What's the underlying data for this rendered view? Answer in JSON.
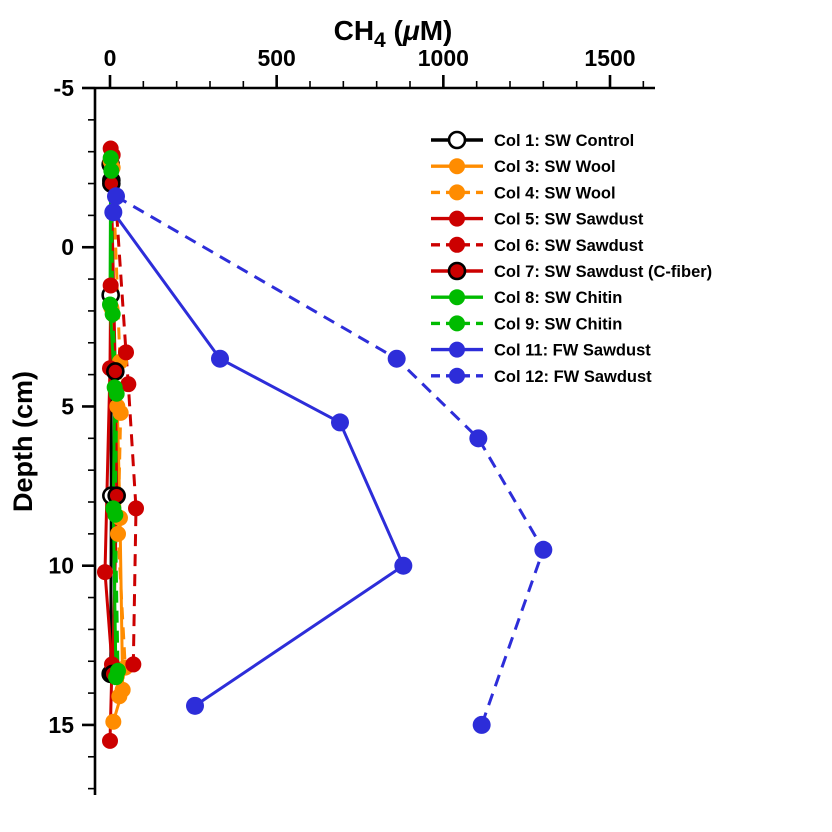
{
  "chart_data": {
    "type": "line",
    "title_parts": {
      "element": "CH",
      "subscript": "4",
      "unit_open": " (",
      "mu": "μ",
      "unit_close": "M)"
    },
    "xlabel": "CH4 (μM)",
    "ylabel": "Depth (cm)",
    "x_axis": {
      "position": "top",
      "range": [
        -45,
        1635
      ],
      "ticks": [
        0,
        500,
        1000,
        1500
      ],
      "tick_labels": [
        "0",
        "500",
        "1000",
        "1500"
      ],
      "minor_step": 100
    },
    "y_axis": {
      "position": "left",
      "range": [
        -5,
        17.2
      ],
      "ticks": [
        -5,
        0,
        5,
        10,
        15
      ],
      "tick_labels": [
        "-5",
        "0",
        "5",
        "10",
        "15"
      ],
      "minor_step": 1,
      "direction": "depth increases downward"
    },
    "legend_position": "upper-right-inside",
    "axis_color": "#000000",
    "series": [
      {
        "id": "col1",
        "label": "Col 1: SW Control",
        "color": "#000000",
        "line_style": "solid",
        "marker": "open-circle",
        "points": [
          [
            2,
            -2.6
          ],
          [
            4,
            -2.1
          ],
          [
            2,
            1.5
          ],
          [
            4,
            7.8
          ],
          [
            2,
            13.4
          ]
        ]
      },
      {
        "id": "col3",
        "label": "Col 3: SW Wool",
        "color": "#ff8c00",
        "line_style": "solid",
        "marker": "filled-circle",
        "points": [
          [
            2,
            -2.7
          ],
          [
            4,
            1.9
          ],
          [
            22,
            5.0
          ],
          [
            30,
            8.5
          ],
          [
            38,
            13.9
          ],
          [
            10,
            14.9
          ]
        ]
      },
      {
        "id": "col4",
        "label": "Col 4: SW Wool",
        "color": "#ff8c00",
        "line_style": "dashed",
        "marker": "filled-circle",
        "points": [
          [
            8,
            -2.5
          ],
          [
            30,
            3.6
          ],
          [
            32,
            5.2
          ],
          [
            24,
            9.0
          ],
          [
            46,
            13.2
          ],
          [
            28,
            14.1
          ]
        ]
      },
      {
        "id": "col5",
        "label": "Col 5: SW Sawdust",
        "color": "#cc0000",
        "line_style": "solid",
        "marker": "filled-circle",
        "points": [
          [
            2,
            -3.1
          ],
          [
            2,
            1.2
          ],
          [
            0,
            3.8
          ],
          [
            -15,
            10.2
          ],
          [
            6,
            13.1
          ],
          [
            0,
            15.5
          ]
        ]
      },
      {
        "id": "col6",
        "label": "Col 6: SW Sawdust",
        "color": "#cc0000",
        "line_style": "dashed",
        "marker": "filled-circle",
        "points": [
          [
            8,
            -2.9
          ],
          [
            48,
            3.3
          ],
          [
            55,
            4.3
          ],
          [
            78,
            8.2
          ],
          [
            70,
            13.1
          ]
        ]
      },
      {
        "id": "col7",
        "label": "Col 7: SW Sawdust (C-fiber)",
        "color": "#cc0000",
        "line_style": "solid",
        "marker": "filled-circle-black-edge",
        "points": [
          [
            4,
            -2.0
          ],
          [
            16,
            3.9
          ],
          [
            20,
            7.8
          ],
          [
            8,
            13.4
          ]
        ]
      },
      {
        "id": "col8",
        "label": "Col 8: SW Chitin",
        "color": "#00bb00",
        "line_style": "solid",
        "marker": "filled-circle",
        "points": [
          [
            2,
            -2.8
          ],
          [
            0,
            1.8
          ],
          [
            14,
            4.4
          ],
          [
            10,
            8.2
          ],
          [
            18,
            13.5
          ]
        ]
      },
      {
        "id": "col9",
        "label": "Col 9: SW Chitin",
        "color": "#00bb00",
        "line_style": "dashed",
        "marker": "filled-circle",
        "points": [
          [
            4,
            -2.4
          ],
          [
            8,
            2.1
          ],
          [
            20,
            4.6
          ],
          [
            16,
            8.4
          ],
          [
            24,
            13.3
          ]
        ]
      },
      {
        "id": "col11",
        "label": "Col 11: FW Sawdust",
        "color": "#2d2dd9",
        "line_style": "solid",
        "marker": "filled-circle",
        "points": [
          [
            10,
            -1.1
          ],
          [
            330,
            3.5
          ],
          [
            690,
            5.5
          ],
          [
            880,
            10.0
          ],
          [
            255,
            14.4
          ]
        ]
      },
      {
        "id": "col12",
        "label": "Col 12: FW Sawdust",
        "color": "#2d2dd9",
        "line_style": "dashed",
        "marker": "filled-circle",
        "points": [
          [
            18,
            -1.6
          ],
          [
            860,
            3.5
          ],
          [
            1105,
            6.0
          ],
          [
            1300,
            9.5
          ],
          [
            1115,
            15.0
          ]
        ]
      }
    ]
  }
}
